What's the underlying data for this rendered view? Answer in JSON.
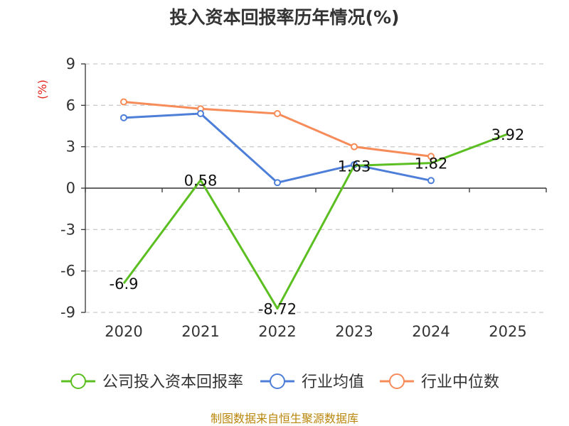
{
  "chart_data": {
    "type": "line",
    "title": "投入资本回报率历年情况(%)",
    "ylabel": "(%)",
    "categories": [
      "2020",
      "2021",
      "2022",
      "2023",
      "2024",
      "2025"
    ],
    "ylim": [
      -9,
      9
    ],
    "yticks": [
      9,
      6,
      3,
      0,
      -3,
      -6,
      -9
    ],
    "grid": true,
    "legend_position": "bottom",
    "series": [
      {
        "name": "公司投入资本回报率",
        "color": "#5bbf21",
        "values": [
          -6.9,
          0.58,
          -8.72,
          1.63,
          1.82,
          3.92
        ],
        "labels": [
          "-6.9",
          "0.58",
          "-8.72",
          "1.63",
          "1.82",
          "3.92"
        ]
      },
      {
        "name": "行业均值",
        "color": "#4e7fd8",
        "values": [
          5.1,
          5.4,
          0.4,
          1.7,
          0.55,
          null
        ]
      },
      {
        "name": "行业中位数",
        "color": "#f68c5a",
        "values": [
          6.25,
          5.75,
          5.4,
          3.0,
          2.3,
          null
        ]
      }
    ],
    "source": "制图数据来自恒生聚源数据库"
  }
}
